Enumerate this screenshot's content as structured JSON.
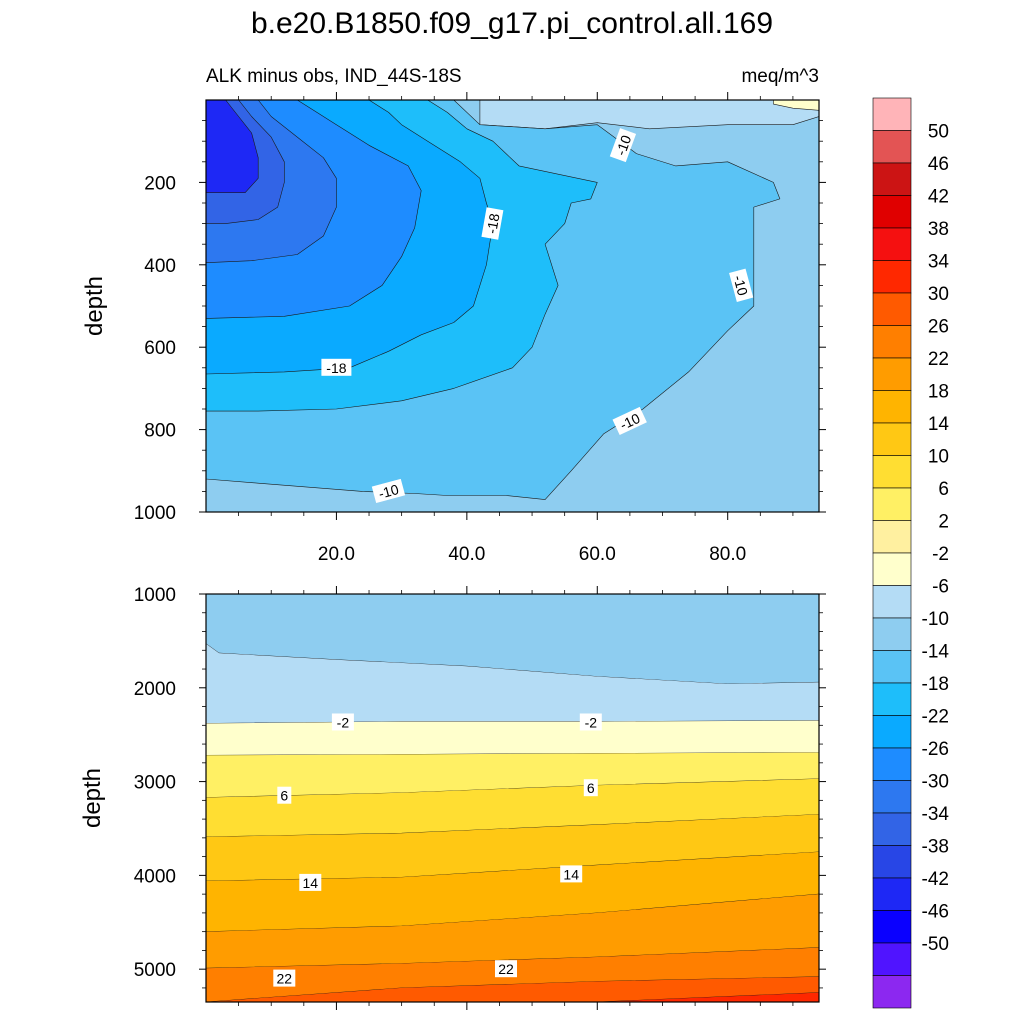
{
  "title": "b.e20.B1850.f09_g17.pi_control.all.169",
  "subtitle_left": "ALK minus obs, IND_44S-18S",
  "subtitle_right": "meq/m^3",
  "chart_data": [
    {
      "type": "contour",
      "panel": "upper",
      "ylabel": "depth",
      "xlim": [
        0,
        94
      ],
      "ylim": [
        1000,
        0
      ],
      "y_reversed": true,
      "x_ticks": [
        "20.0",
        "40.0",
        "60.0",
        "80.0"
      ],
      "x_tick_values": [
        20,
        40,
        60,
        80
      ],
      "y_ticks": [
        "200",
        "400",
        "600",
        "800",
        "1000"
      ],
      "y_tick_values": [
        200,
        400,
        600,
        800,
        1000
      ],
      "contour_labels": [
        {
          "text": "-10",
          "x": 64,
          "y": 110
        },
        {
          "text": "-18",
          "x": 44,
          "y": 300
        },
        {
          "text": "-10",
          "x": 82,
          "y": 450
        },
        {
          "text": "-18",
          "x": 20,
          "y": 650
        },
        {
          "text": "-10",
          "x": 65,
          "y": 780
        },
        {
          "text": "-10",
          "x": 28,
          "y": 950
        }
      ],
      "regions": [
        {
          "level": -10,
          "poly": [
            [
              0,
              0
            ],
            [
              94,
              0
            ],
            [
              94,
              1000
            ],
            [
              0,
              1000
            ]
          ]
        },
        {
          "level": -6,
          "poly": [
            [
              42,
              0
            ],
            [
              94,
              0
            ],
            [
              94,
              40
            ],
            [
              90,
              60
            ],
            [
              80,
              60
            ],
            [
              68,
              70
            ],
            [
              60,
              55
            ],
            [
              52,
              70
            ],
            [
              42,
              60
            ]
          ]
        },
        {
          "level": -2,
          "poly": [
            [
              87,
              0
            ],
            [
              94,
              0
            ],
            [
              94,
              25
            ],
            [
              90,
              20
            ],
            [
              87,
              10
            ]
          ]
        },
        {
          "level": -14,
          "poly": [
            [
              0,
              0
            ],
            [
              38,
              0
            ],
            [
              42,
              60
            ],
            [
              52,
              70
            ],
            [
              60,
              60
            ],
            [
              66,
              130
            ],
            [
              72,
              160
            ],
            [
              80,
              150
            ],
            [
              87,
              200
            ],
            [
              88,
              240
            ],
            [
              84,
              260
            ],
            [
              84,
              370
            ],
            [
              84,
              500
            ],
            [
              80,
              560
            ],
            [
              74,
              660
            ],
            [
              67,
              750
            ],
            [
              61,
              810
            ],
            [
              56,
              900
            ],
            [
              52,
              970
            ],
            [
              46,
              960
            ],
            [
              37,
              960
            ],
            [
              32,
              955
            ],
            [
              24,
              950
            ],
            [
              8,
              930
            ],
            [
              0,
              920
            ]
          ]
        },
        {
          "level": -18,
          "poly": [
            [
              0,
              0
            ],
            [
              34,
              0
            ],
            [
              37,
              30
            ],
            [
              40,
              70
            ],
            [
              44,
              100
            ],
            [
              48,
              160
            ],
            [
              60,
              200
            ],
            [
              59,
              240
            ],
            [
              56,
              250
            ],
            [
              55,
              300
            ],
            [
              52,
              350
            ],
            [
              54,
              450
            ],
            [
              52,
              520
            ],
            [
              50,
              600
            ],
            [
              47,
              650
            ],
            [
              38,
              700
            ],
            [
              30,
              730
            ],
            [
              20,
              750
            ],
            [
              8,
              755
            ],
            [
              0,
              755
            ]
          ]
        },
        {
          "level": -22,
          "poly": [
            [
              0,
              0
            ],
            [
              25,
              0
            ],
            [
              28,
              30
            ],
            [
              30,
              60
            ],
            [
              34,
              100
            ],
            [
              39,
              150
            ],
            [
              42,
              190
            ],
            [
              43,
              250
            ],
            [
              44,
              300
            ],
            [
              43,
              400
            ],
            [
              41,
              500
            ],
            [
              38,
              540
            ],
            [
              33,
              570
            ],
            [
              28,
              610
            ],
            [
              22,
              650
            ],
            [
              12,
              660
            ],
            [
              0,
              665
            ]
          ]
        },
        {
          "level": -26,
          "poly": [
            [
              0,
              0
            ],
            [
              14,
              0
            ],
            [
              17,
              30
            ],
            [
              20,
              60
            ],
            [
              25,
              110
            ],
            [
              31,
              160
            ],
            [
              33,
              220
            ],
            [
              32,
              310
            ],
            [
              30,
              380
            ],
            [
              27,
              450
            ],
            [
              22,
              500
            ],
            [
              12,
              525
            ],
            [
              0,
              530
            ]
          ]
        },
        {
          "level": -30,
          "poly": [
            [
              0,
              0
            ],
            [
              8,
              0
            ],
            [
              10,
              40
            ],
            [
              14,
              90
            ],
            [
              18,
              140
            ],
            [
              20,
              190
            ],
            [
              20,
              260
            ],
            [
              18,
              330
            ],
            [
              14,
              375
            ],
            [
              7,
              390
            ],
            [
              0,
              395
            ]
          ]
        },
        {
          "level": -34,
          "poly": [
            [
              0,
              0
            ],
            [
              5,
              0
            ],
            [
              7,
              40
            ],
            [
              10,
              90
            ],
            [
              12,
              150
            ],
            [
              12,
              200
            ],
            [
              11,
              260
            ],
            [
              8,
              290
            ],
            [
              3,
              300
            ],
            [
              0,
              300
            ]
          ]
        },
        {
          "level": -38,
          "poly": [
            [
              0,
              0
            ],
            [
              3,
              0
            ],
            [
              5,
              40
            ],
            [
              7,
              80
            ],
            [
              8,
              140
            ],
            [
              8,
              190
            ],
            [
              6,
              225
            ],
            [
              0,
              225
            ]
          ]
        }
      ]
    },
    {
      "type": "contour",
      "panel": "lower",
      "ylabel": "depth",
      "xlim": [
        0,
        94
      ],
      "ylim": [
        1000,
        5350
      ],
      "y_reversed": true,
      "y_ticks": [
        "1000",
        "2000",
        "3000",
        "4000",
        "5000"
      ],
      "y_tick_values": [
        1000,
        2000,
        3000,
        4000,
        5000
      ],
      "contour_labels": [
        {
          "text": "-2",
          "x": 21,
          "y": 2370
        },
        {
          "text": "-2",
          "x": 59,
          "y": 2370
        },
        {
          "text": "6",
          "x": 12,
          "y": 3150
        },
        {
          "text": "6",
          "x": 59,
          "y": 3070
        },
        {
          "text": "14",
          "x": 16,
          "y": 4080
        },
        {
          "text": "14",
          "x": 56,
          "y": 3990
        },
        {
          "text": "22",
          "x": 12,
          "y": 5100
        },
        {
          "text": "22",
          "x": 46,
          "y": 5000
        }
      ],
      "layers": [
        {
          "level": -10,
          "bottom": [
            [
              0,
              1530
            ],
            [
              2,
              1630
            ],
            [
              20,
              1700
            ],
            [
              40,
              1770
            ],
            [
              60,
              1880
            ],
            [
              80,
              1960
            ],
            [
              94,
              1940
            ]
          ]
        },
        {
          "level": -6,
          "bottom": [
            [
              0,
              2380
            ],
            [
              30,
              2360
            ],
            [
              60,
              2360
            ],
            [
              94,
              2350
            ]
          ]
        },
        {
          "level": -2,
          "bottom": [
            [
              0,
              2720
            ],
            [
              30,
              2710
            ],
            [
              60,
              2700
            ],
            [
              94,
              2690
            ]
          ]
        },
        {
          "level": 2,
          "bottom": [
            [
              0,
              3170
            ],
            [
              30,
              3120
            ],
            [
              60,
              3040
            ],
            [
              94,
              2970
            ]
          ]
        },
        {
          "level": 6,
          "bottom": [
            [
              0,
              3590
            ],
            [
              30,
              3550
            ],
            [
              60,
              3460
            ],
            [
              94,
              3350
            ]
          ]
        },
        {
          "level": 10,
          "bottom": [
            [
              0,
              4060
            ],
            [
              30,
              4020
            ],
            [
              60,
              3890
            ],
            [
              94,
              3750
            ]
          ]
        },
        {
          "level": 14,
          "bottom": [
            [
              0,
              4600
            ],
            [
              30,
              4540
            ],
            [
              60,
              4400
            ],
            [
              94,
              4200
            ]
          ]
        },
        {
          "level": 18,
          "bottom": [
            [
              0,
              4990
            ],
            [
              30,
              4940
            ],
            [
              60,
              4870
            ],
            [
              94,
              4770
            ]
          ]
        },
        {
          "level": 22,
          "bottom": [
            [
              0,
              5350
            ],
            [
              30,
              5200
            ],
            [
              60,
              5130
            ],
            [
              94,
              5080
            ]
          ]
        },
        {
          "level": 26,
          "bottom": [
            [
              0,
              5350
            ],
            [
              60,
              5350
            ],
            [
              94,
              5250
            ]
          ]
        },
        {
          "level": 30,
          "bottom": [
            [
              0,
              5350
            ],
            [
              94,
              5350
            ]
          ]
        }
      ]
    }
  ],
  "colorbar": {
    "labels": [
      "50",
      "46",
      "42",
      "38",
      "34",
      "30",
      "26",
      "22",
      "18",
      "14",
      "10",
      "6",
      "2",
      "-2",
      "-6",
      "-10",
      "-14",
      "-18",
      "-22",
      "-26",
      "-30",
      "-34",
      "-38",
      "-42",
      "-46",
      "-50"
    ],
    "colors": [
      "#ffb4b8",
      "#e35454",
      "#cc1414",
      "#e00000",
      "#f51010",
      "#ff2800",
      "#ff5a00",
      "#ff7f00",
      "#ff9c00",
      "#ffb400",
      "#ffc814",
      "#ffde32",
      "#fff064",
      "#fff0a0",
      "#ffffcc",
      "#b4dcf5",
      "#8ecdf0",
      "#5ac3f5",
      "#1ebefa",
      "#0aaaff",
      "#1e8cff",
      "#2d78f0",
      "#3264e6",
      "#2846e6",
      "#1e28f5",
      "#0a00ff",
      "#5014ff",
      "#8c28f0"
    ]
  }
}
